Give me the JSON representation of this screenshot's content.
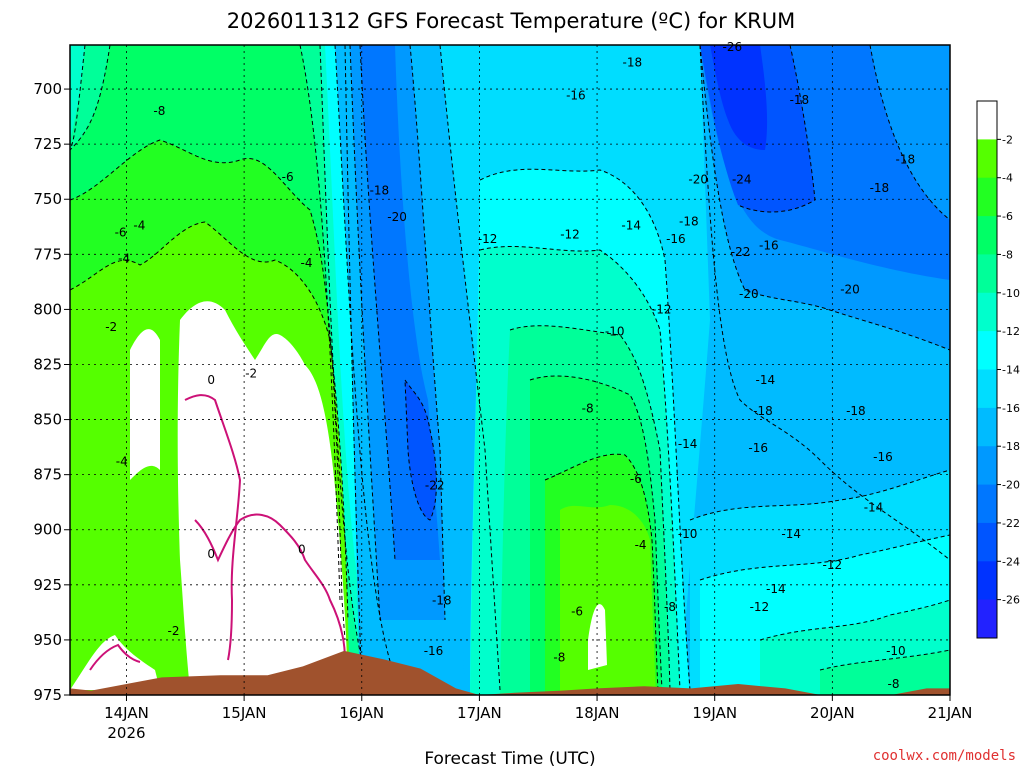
{
  "chart_data": {
    "type": "heatmap",
    "title": "2026011312 GFS Forecast Temperature (ºC) for KRUM",
    "xlabel": "Forecast Time (UTC)",
    "ylabel": "",
    "x_ticks": [
      {
        "label": "14JAN",
        "sub": "2026",
        "t": 0
      },
      {
        "label": "15JAN",
        "sub": "",
        "t": 1
      },
      {
        "label": "16JAN",
        "sub": "",
        "t": 2
      },
      {
        "label": "17JAN",
        "sub": "",
        "t": 3
      },
      {
        "label": "18JAN",
        "sub": "",
        "t": 4
      },
      {
        "label": "19JAN",
        "sub": "",
        "t": 5
      },
      {
        "label": "20JAN",
        "sub": "",
        "t": 6
      },
      {
        "label": "21JAN",
        "sub": "",
        "t": 7
      }
    ],
    "xlim": [
      -0.48,
      7.0
    ],
    "y_ticks": [
      700,
      725,
      750,
      775,
      800,
      825,
      850,
      875,
      900,
      925,
      950,
      975
    ],
    "ylim": [
      680,
      975
    ],
    "grid": true,
    "colorbar": {
      "levels": [
        -2,
        -4,
        -6,
        -8,
        -10,
        -12,
        -14,
        -16,
        -18,
        -20,
        -22,
        -24,
        -26
      ],
      "colors": [
        "#ffffff",
        "#55ff00",
        "#22ff22",
        "#00ff66",
        "#00ff99",
        "#00ffcc",
        "#00ffff",
        "#00ddff",
        "#00bbff",
        "#0099ff",
        "#0077ff",
        "#0055ff",
        "#0033ff",
        "#2222ff"
      ]
    },
    "terrain_color": "#a0522d",
    "surface_pressure": [
      [
        -0.48,
        972
      ],
      [
        -0.3,
        973
      ],
      [
        0.0,
        970
      ],
      [
        0.3,
        967
      ],
      [
        0.8,
        966
      ],
      [
        1.2,
        966
      ],
      [
        1.5,
        962
      ],
      [
        1.85,
        955
      ],
      [
        2.2,
        959
      ],
      [
        2.5,
        963
      ],
      [
        2.8,
        972
      ],
      [
        3.0,
        975
      ],
      [
        3.3,
        974
      ],
      [
        3.7,
        973
      ],
      [
        4.0,
        972
      ],
      [
        4.4,
        971
      ],
      [
        4.8,
        972
      ],
      [
        5.2,
        970
      ],
      [
        5.6,
        972
      ],
      [
        6.0,
        976
      ],
      [
        6.5,
        975
      ],
      [
        6.8,
        972
      ],
      [
        7.0,
        972
      ]
    ],
    "contour_labels": [
      {
        "v": "-8",
        "t": 0.28,
        "p": 710
      },
      {
        "v": "-6",
        "t": 1.37,
        "p": 740
      },
      {
        "v": "-6",
        "t": -0.05,
        "p": 765
      },
      {
        "v": "-4",
        "t": 0.11,
        "p": 762
      },
      {
        "v": "-4",
        "t": -0.02,
        "p": 777
      },
      {
        "v": "-4",
        "t": 1.53,
        "p": 779
      },
      {
        "v": "-2",
        "t": -0.13,
        "p": 808
      },
      {
        "v": "0",
        "t": 0.72,
        "p": 832
      },
      {
        "v": "-2",
        "t": 1.06,
        "p": 829
      },
      {
        "v": "-4",
        "t": -0.04,
        "p": 869
      },
      {
        "v": "0",
        "t": 0.72,
        "p": 911
      },
      {
        "v": "0",
        "t": 1.49,
        "p": 909
      },
      {
        "v": "-2",
        "t": 0.4,
        "p": 946
      },
      {
        "v": "-18",
        "t": 2.15,
        "p": 746
      },
      {
        "v": "-20",
        "t": 2.3,
        "p": 758
      },
      {
        "v": "-22",
        "t": 2.62,
        "p": 880
      },
      {
        "v": "-18",
        "t": 2.68,
        "p": 932
      },
      {
        "v": "-16",
        "t": 2.61,
        "p": 955
      },
      {
        "v": "-16",
        "t": 3.82,
        "p": 703
      },
      {
        "v": "-18",
        "t": 4.3,
        "p": 688
      },
      {
        "v": "-12",
        "t": 3.07,
        "p": 768
      },
      {
        "v": "-12",
        "t": 3.77,
        "p": 766
      },
      {
        "v": "-14",
        "t": 4.29,
        "p": 762
      },
      {
        "v": "-16",
        "t": 4.67,
        "p": 768
      },
      {
        "v": "-18",
        "t": 4.78,
        "p": 760
      },
      {
        "v": "-20",
        "t": 4.86,
        "p": 741
      },
      {
        "v": "-24",
        "t": 5.23,
        "p": 741
      },
      {
        "v": "-26",
        "t": 5.15,
        "p": 681
      },
      {
        "v": "-18",
        "t": 5.72,
        "p": 705
      },
      {
        "v": "-18",
        "t": 6.4,
        "p": 745
      },
      {
        "v": "-18",
        "t": 6.62,
        "p": 732
      },
      {
        "v": "-22",
        "t": 5.22,
        "p": 774
      },
      {
        "v": "-16",
        "t": 5.46,
        "p": 771
      },
      {
        "v": "-20",
        "t": 5.29,
        "p": 793
      },
      {
        "v": "-20",
        "t": 6.15,
        "p": 791
      },
      {
        "v": "-12",
        "t": 4.55,
        "p": 800
      },
      {
        "v": "-10",
        "t": 4.15,
        "p": 810
      },
      {
        "v": "-14",
        "t": 5.43,
        "p": 832
      },
      {
        "v": "-18",
        "t": 5.41,
        "p": 846
      },
      {
        "v": "-18",
        "t": 6.2,
        "p": 846
      },
      {
        "v": "-8",
        "t": 3.92,
        "p": 845
      },
      {
        "v": "-14",
        "t": 4.77,
        "p": 861
      },
      {
        "v": "-16",
        "t": 5.37,
        "p": 863
      },
      {
        "v": "-16",
        "t": 6.43,
        "p": 867
      },
      {
        "v": "-6",
        "t": 4.33,
        "p": 877
      },
      {
        "v": "-14",
        "t": 6.35,
        "p": 890
      },
      {
        "v": "-4",
        "t": 4.37,
        "p": 907
      },
      {
        "v": "-10",
        "t": 4.77,
        "p": 902
      },
      {
        "v": "-14",
        "t": 5.65,
        "p": 902
      },
      {
        "v": "-12",
        "t": 6.0,
        "p": 916
      },
      {
        "v": "-14",
        "t": 5.52,
        "p": 927
      },
      {
        "v": "-12",
        "t": 5.38,
        "p": 935
      },
      {
        "v": "-6",
        "t": 3.83,
        "p": 937
      },
      {
        "v": "-8",
        "t": 4.62,
        "p": 935
      },
      {
        "v": "-8",
        "t": 3.68,
        "p": 958
      },
      {
        "v": "-10",
        "t": 6.54,
        "p": 955
      },
      {
        "v": "-8",
        "t": 6.52,
        "p": 970
      }
    ]
  },
  "credit": "coolwx.com/models"
}
